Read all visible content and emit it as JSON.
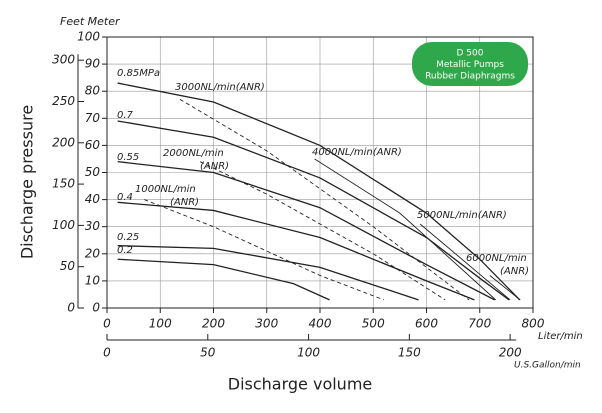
{
  "chart_data": {
    "type": "line",
    "axis_unit_label": "Feet Meter",
    "ylabel": "Discharge pressure",
    "xlabel": "Discharge volume",
    "x_unit": "Liter/min",
    "x2_unit": "U.S.Gallon/min",
    "xlim": [
      0,
      800
    ],
    "xticks": [
      0,
      100,
      200,
      300,
      400,
      500,
      600,
      700,
      800
    ],
    "x2lim": [
      0,
      211.34
    ],
    "x2ticks": [
      0,
      50,
      100,
      150,
      200
    ],
    "ylim": [
      0,
      100
    ],
    "yticks": [
      0,
      10,
      20,
      30,
      40,
      50,
      60,
      70,
      80,
      90,
      100
    ],
    "y2lim": [
      0,
      328.08
    ],
    "y2ticks": [
      0,
      50,
      100,
      150,
      200,
      250,
      300
    ],
    "grid": true,
    "color": "#222222",
    "info_box": {
      "lines": [
        "D 500",
        "Metallic Pumps",
        "Rubber Diaphragms"
      ],
      "color": "#2ea84a"
    },
    "series": [
      {
        "name": "0.85MPa",
        "x": [
          20,
          200,
          400,
          600,
          700,
          775
        ],
        "values": [
          83,
          76,
          60,
          35,
          18,
          3
        ]
      },
      {
        "name": "0.7",
        "x": [
          20,
          200,
          400,
          600,
          700,
          755
        ],
        "values": [
          69,
          63,
          48,
          26,
          11,
          3
        ]
      },
      {
        "name": "0.55",
        "x": [
          20,
          200,
          400,
          600,
          728
        ],
        "values": [
          54,
          50,
          37,
          16,
          3
        ]
      },
      {
        "name": "0.4",
        "x": [
          20,
          200,
          400,
          600,
          690
        ],
        "values": [
          39,
          36,
          26,
          10,
          3
        ]
      },
      {
        "name": "0.25",
        "x": [
          20,
          200,
          400,
          585
        ],
        "values": [
          23,
          22,
          15,
          3
        ]
      },
      {
        "name": "0.2",
        "x": [
          20,
          200,
          350,
          418
        ],
        "values": [
          18,
          16,
          9,
          3
        ]
      }
    ],
    "air_consumption": [
      {
        "label": [
          "1000NL/min",
          "(ANR)"
        ],
        "dashed": true,
        "x": [
          70,
          200,
          400,
          520
        ],
        "values": [
          40,
          30,
          12,
          3
        ]
      },
      {
        "label": [
          "2000NL/min",
          "(ANR)"
        ],
        "dashed": true,
        "x": [
          175,
          300,
          500,
          635
        ],
        "values": [
          54,
          42,
          20,
          3
        ]
      },
      {
        "label": [
          "3000NL/min(ANR)"
        ],
        "dashed": true,
        "x": [
          137,
          300,
          500,
          680
        ],
        "values": [
          77,
          58,
          30,
          3
        ]
      },
      {
        "label": [
          "4000NL/min(ANR)"
        ],
        "dashed": false,
        "x": [
          390,
          550,
          730
        ],
        "values": [
          55,
          35,
          3
        ]
      },
      {
        "label": [
          "5000NL/min(ANR)"
        ],
        "dashed": false,
        "x": [
          588,
          757
        ],
        "values": [
          31,
          3
        ]
      },
      {
        "label": [
          "6000NL/min",
          "(ANR)"
        ],
        "dashed": false,
        "x": [
          719,
          776
        ],
        "values": [
          12,
          3
        ]
      }
    ]
  }
}
